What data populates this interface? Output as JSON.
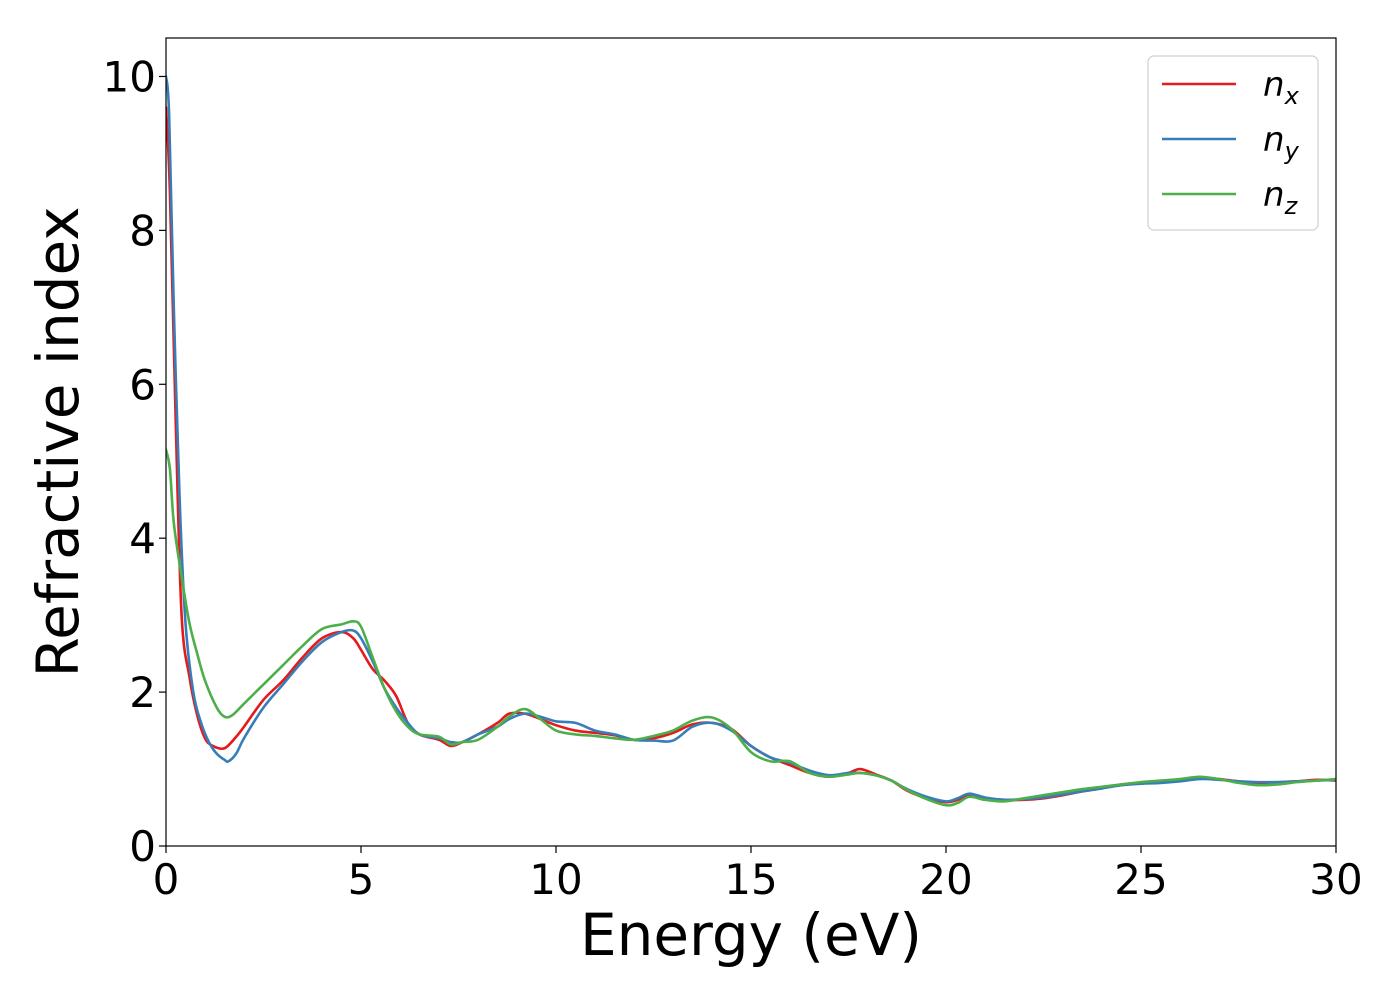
{
  "chart_data": {
    "type": "line",
    "xlabel": "Energy (eV)",
    "ylabel": "Refractive index",
    "xlim": [
      0,
      30
    ],
    "ylim": [
      0,
      10.5
    ],
    "xticks": [
      0,
      5,
      10,
      15,
      20,
      25,
      30
    ],
    "yticks": [
      0,
      2,
      4,
      6,
      8,
      10
    ],
    "grid": false,
    "legend_position": "top-right",
    "series": [
      {
        "name": "n",
        "subscript": "x",
        "color": "#e41a1c",
        "x": [
          0,
          0.1,
          0.25,
          0.4,
          0.6,
          0.8,
          1.0,
          1.2,
          1.5,
          1.8,
          2.0,
          2.5,
          3.0,
          3.5,
          4.0,
          4.5,
          4.8,
          5.0,
          5.3,
          5.6,
          5.9,
          6.2,
          6.5,
          7.0,
          7.3,
          7.6,
          8.0,
          8.5,
          8.8,
          9.2,
          9.6,
          10.0,
          10.5,
          11.0,
          11.5,
          12.0,
          12.5,
          13.0,
          13.5,
          14.0,
          14.5,
          15.0,
          15.5,
          16.0,
          16.5,
          17.0,
          17.5,
          17.8,
          18.2,
          18.6,
          19.0,
          19.5,
          20.0,
          20.3,
          20.6,
          21.0,
          21.5,
          22.0,
          22.5,
          23.0,
          23.5,
          24.0,
          24.5,
          25.0,
          25.5,
          26.0,
          26.5,
          27.0,
          27.5,
          28.0,
          28.5,
          29.0,
          29.5,
          30.0
        ],
        "y": [
          9.6,
          8.5,
          5.5,
          3.0,
          2.2,
          1.7,
          1.4,
          1.3,
          1.27,
          1.42,
          1.55,
          1.9,
          2.15,
          2.45,
          2.7,
          2.78,
          2.7,
          2.55,
          2.3,
          2.15,
          1.95,
          1.6,
          1.45,
          1.38,
          1.3,
          1.35,
          1.45,
          1.6,
          1.72,
          1.72,
          1.65,
          1.57,
          1.5,
          1.47,
          1.44,
          1.38,
          1.4,
          1.47,
          1.58,
          1.6,
          1.52,
          1.3,
          1.15,
          1.05,
          0.95,
          0.9,
          0.95,
          1.0,
          0.93,
          0.85,
          0.72,
          0.62,
          0.57,
          0.6,
          0.65,
          0.62,
          0.6,
          0.6,
          0.62,
          0.66,
          0.71,
          0.75,
          0.8,
          0.82,
          0.83,
          0.86,
          0.88,
          0.87,
          0.84,
          0.82,
          0.83,
          0.84,
          0.86,
          0.85
        ]
      },
      {
        "name": "n",
        "subscript": "y",
        "color": "#377eb8",
        "x": [
          0,
          0.08,
          0.2,
          0.35,
          0.5,
          0.7,
          0.9,
          1.1,
          1.3,
          1.5,
          1.6,
          1.8,
          2.0,
          2.5,
          3.0,
          3.5,
          4.0,
          4.5,
          4.8,
          5.0,
          5.3,
          5.6,
          5.9,
          6.2,
          6.5,
          7.0,
          7.3,
          7.6,
          8.0,
          8.5,
          8.8,
          9.2,
          9.6,
          10.0,
          10.5,
          11.0,
          11.5,
          12.0,
          12.5,
          13.0,
          13.5,
          14.0,
          14.5,
          15.0,
          15.5,
          16.0,
          16.5,
          17.0,
          17.5,
          17.8,
          18.2,
          18.6,
          19.0,
          19.5,
          20.0,
          20.3,
          20.6,
          21.0,
          21.5,
          22.0,
          22.5,
          23.0,
          23.5,
          24.0,
          24.5,
          25.0,
          25.5,
          26.0,
          26.5,
          27.0,
          27.5,
          28.0,
          28.5,
          29.0,
          29.5,
          30.0
        ],
        "y": [
          10.0,
          9.5,
          7.0,
          4.5,
          2.9,
          2.0,
          1.6,
          1.35,
          1.2,
          1.12,
          1.1,
          1.2,
          1.4,
          1.8,
          2.1,
          2.4,
          2.65,
          2.78,
          2.8,
          2.7,
          2.4,
          2.05,
          1.8,
          1.6,
          1.45,
          1.4,
          1.35,
          1.35,
          1.45,
          1.55,
          1.65,
          1.72,
          1.68,
          1.62,
          1.6,
          1.5,
          1.45,
          1.38,
          1.37,
          1.37,
          1.55,
          1.6,
          1.5,
          1.3,
          1.15,
          1.08,
          0.98,
          0.92,
          0.95,
          0.95,
          0.92,
          0.85,
          0.74,
          0.64,
          0.58,
          0.62,
          0.68,
          0.63,
          0.6,
          0.61,
          0.63,
          0.67,
          0.71,
          0.75,
          0.79,
          0.81,
          0.82,
          0.84,
          0.87,
          0.86,
          0.84,
          0.83,
          0.83,
          0.84,
          0.85,
          0.86
        ]
      },
      {
        "name": "n",
        "subscript": "z",
        "color": "#4daf4a",
        "x": [
          0,
          0.1,
          0.2,
          0.4,
          0.6,
          0.8,
          1.0,
          1.3,
          1.5,
          1.7,
          2.0,
          2.5,
          3.0,
          3.5,
          4.0,
          4.5,
          4.8,
          5.0,
          5.3,
          5.6,
          5.9,
          6.2,
          6.5,
          7.0,
          7.3,
          7.6,
          8.0,
          8.5,
          8.8,
          9.2,
          9.6,
          10.0,
          10.5,
          11.0,
          11.5,
          12.0,
          12.5,
          13.0,
          13.5,
          14.0,
          14.5,
          15.0,
          15.5,
          16.0,
          16.5,
          17.0,
          17.5,
          17.8,
          18.2,
          18.6,
          19.0,
          19.5,
          20.0,
          20.3,
          20.6,
          21.0,
          21.5,
          22.0,
          22.5,
          23.0,
          23.5,
          24.0,
          24.5,
          25.0,
          25.5,
          26.0,
          26.5,
          27.0,
          27.5,
          28.0,
          28.5,
          29.0,
          29.5,
          30.0
        ],
        "y": [
          5.15,
          4.9,
          4.2,
          3.5,
          2.9,
          2.5,
          2.15,
          1.8,
          1.68,
          1.7,
          1.85,
          2.1,
          2.35,
          2.6,
          2.82,
          2.88,
          2.92,
          2.85,
          2.45,
          2.05,
          1.75,
          1.55,
          1.45,
          1.42,
          1.32,
          1.35,
          1.38,
          1.55,
          1.68,
          1.78,
          1.65,
          1.5,
          1.45,
          1.43,
          1.4,
          1.38,
          1.43,
          1.5,
          1.63,
          1.67,
          1.52,
          1.22,
          1.1,
          1.1,
          0.95,
          0.9,
          0.93,
          0.95,
          0.92,
          0.85,
          0.73,
          0.61,
          0.53,
          0.56,
          0.64,
          0.6,
          0.58,
          0.62,
          0.66,
          0.7,
          0.74,
          0.77,
          0.8,
          0.83,
          0.85,
          0.87,
          0.9,
          0.87,
          0.82,
          0.79,
          0.8,
          0.83,
          0.85,
          0.87
        ]
      }
    ]
  }
}
